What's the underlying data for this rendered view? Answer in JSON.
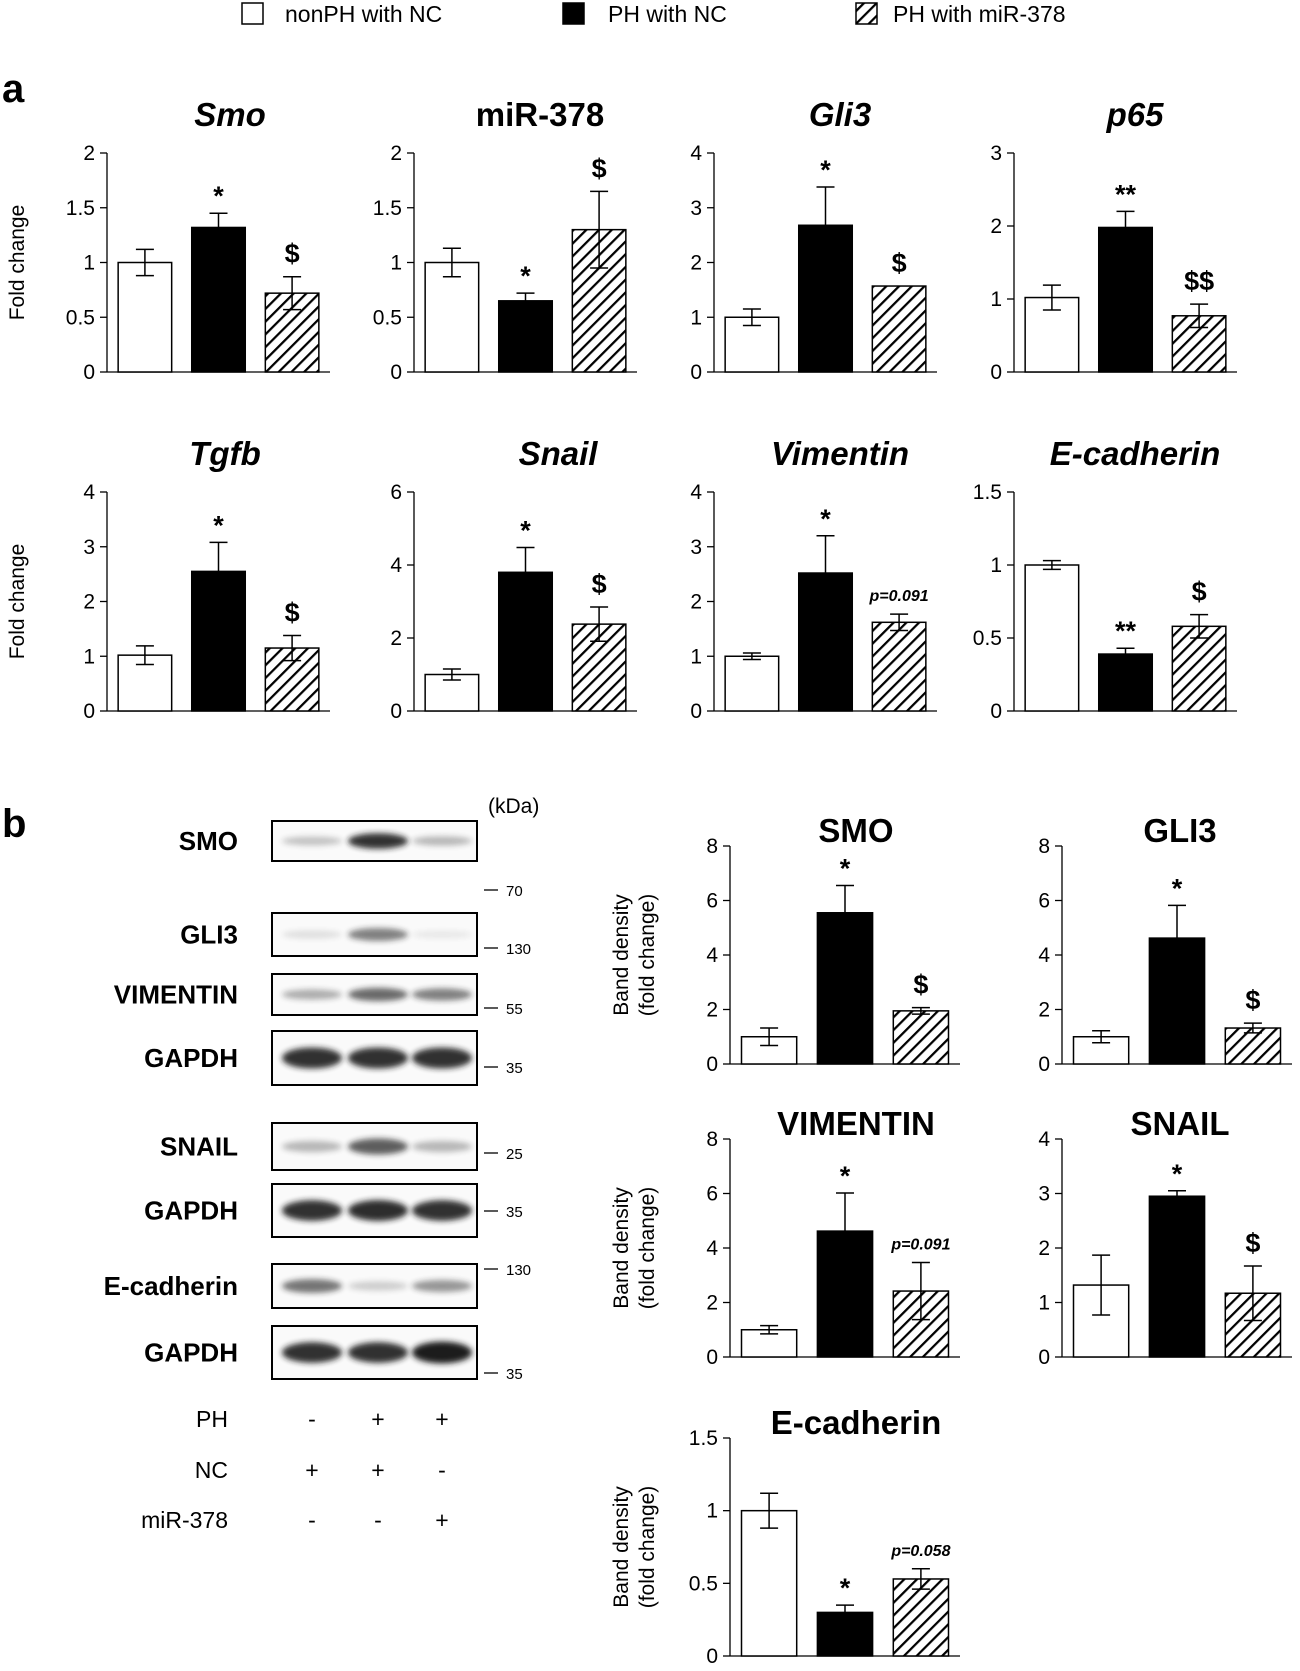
{
  "legend": {
    "items": [
      {
        "label": "nonPH with NC",
        "pattern": "white"
      },
      {
        "label": "PH with NC",
        "pattern": "black"
      },
      {
        "label": "PH with miR-378",
        "pattern": "hatch"
      }
    ]
  },
  "panels": {
    "a": "a",
    "b": "b"
  },
  "colors": {
    "black": "#000000",
    "white": "#ffffff",
    "band": "#1e1e1e"
  },
  "chart_data": [
    {
      "type": "bar",
      "panel": "a",
      "title": "Smo",
      "italic": true,
      "ylabel": "Fold change",
      "ylim": [
        0,
        2
      ],
      "yticks": [
        "0",
        "0.5",
        "1",
        "1.5",
        "2"
      ],
      "categories": [
        "nonPH with NC",
        "PH with NC",
        "PH with miR-378"
      ],
      "values": [
        1.0,
        1.32,
        0.72
      ],
      "errors": [
        0.12,
        0.13,
        0.15
      ],
      "annotations": [
        "",
        "*",
        "$"
      ]
    },
    {
      "type": "bar",
      "panel": "a",
      "title": "miR-378",
      "italic": false,
      "ylabel": "",
      "ylim": [
        0,
        2
      ],
      "yticks": [
        "0",
        "0.5",
        "1",
        "1.5",
        "2"
      ],
      "categories": [
        "nonPH with NC",
        "PH with NC",
        "PH with miR-378"
      ],
      "values": [
        1.0,
        0.65,
        1.3
      ],
      "errors": [
        0.13,
        0.07,
        0.35
      ],
      "annotations": [
        "",
        "*",
        "$"
      ]
    },
    {
      "type": "bar",
      "panel": "a",
      "title": "Gli3",
      "italic": true,
      "ylabel": "",
      "ylim": [
        0,
        4
      ],
      "yticks": [
        "0",
        "1",
        "2",
        "3",
        "4"
      ],
      "categories": [
        "nonPH with NC",
        "PH with NC",
        "PH with miR-378"
      ],
      "values": [
        1.0,
        2.68,
        1.57
      ],
      "errors": [
        0.15,
        0.7,
        0.0
      ],
      "annotations": [
        "",
        "*",
        "$"
      ]
    },
    {
      "type": "bar",
      "panel": "a",
      "title": "p65",
      "italic": true,
      "ylabel": "",
      "ylim": [
        0,
        3
      ],
      "yticks": [
        "0",
        "1",
        "2",
        "3"
      ],
      "categories": [
        "nonPH with NC",
        "PH with NC",
        "PH with miR-378"
      ],
      "values": [
        1.02,
        1.98,
        0.77
      ],
      "errors": [
        0.17,
        0.22,
        0.16
      ],
      "annotations": [
        "",
        "**",
        "$$"
      ]
    },
    {
      "type": "bar",
      "panel": "a",
      "title": "Tgfb",
      "italic": true,
      "ylabel": "Fold change",
      "ylim": [
        0,
        4
      ],
      "yticks": [
        "0",
        "1",
        "2",
        "3",
        "4"
      ],
      "categories": [
        "nonPH with NC",
        "PH with NC",
        "PH with miR-378"
      ],
      "values": [
        1.02,
        2.55,
        1.15
      ],
      "errors": [
        0.17,
        0.53,
        0.23
      ],
      "annotations": [
        "",
        "*",
        "$"
      ]
    },
    {
      "type": "bar",
      "panel": "a",
      "title": "Snail",
      "italic": true,
      "ylabel": "",
      "ylim": [
        0,
        6
      ],
      "yticks": [
        "0",
        "2",
        "4",
        "6"
      ],
      "categories": [
        "nonPH with NC",
        "PH with NC",
        "PH with miR-378"
      ],
      "values": [
        1.0,
        3.8,
        2.38
      ],
      "errors": [
        0.15,
        0.68,
        0.47
      ],
      "annotations": [
        "",
        "*",
        "$"
      ]
    },
    {
      "type": "bar",
      "panel": "a",
      "title": "Vimentin",
      "italic": true,
      "ylabel": "",
      "ylim": [
        0,
        4
      ],
      "yticks": [
        "0",
        "1",
        "2",
        "3",
        "4"
      ],
      "categories": [
        "nonPH with NC",
        "PH with NC",
        "PH with miR-378"
      ],
      "values": [
        1.0,
        2.52,
        1.62
      ],
      "errors": [
        0.06,
        0.68,
        0.15
      ],
      "annotations": [
        "",
        "*",
        "p=0.091"
      ]
    },
    {
      "type": "bar",
      "panel": "a",
      "title": "E-cadherin",
      "italic": true,
      "ylabel": "",
      "ylim": [
        0,
        1.5
      ],
      "yticks": [
        "0",
        "0.5",
        "1",
        "1.5"
      ],
      "categories": [
        "nonPH with NC",
        "PH with NC",
        "PH with miR-378"
      ],
      "values": [
        1.0,
        0.39,
        0.58
      ],
      "errors": [
        0.03,
        0.04,
        0.08
      ],
      "annotations": [
        "",
        "**",
        "$"
      ]
    },
    {
      "type": "bar",
      "panel": "b",
      "title": "SMO",
      "italic": false,
      "ylabel": "Band density (fold change)",
      "ylim": [
        0,
        8
      ],
      "yticks": [
        "0",
        "2",
        "4",
        "6",
        "8"
      ],
      "categories": [
        "nonPH with NC",
        "PH with NC",
        "PH with miR-378"
      ],
      "values": [
        1.0,
        5.55,
        1.95
      ],
      "errors": [
        0.32,
        1.0,
        0.12
      ],
      "annotations": [
        "",
        "*",
        "$"
      ]
    },
    {
      "type": "bar",
      "panel": "b",
      "title": "GLI3",
      "italic": false,
      "ylabel": "",
      "ylim": [
        0,
        8
      ],
      "yticks": [
        "0",
        "2",
        "4",
        "6",
        "8"
      ],
      "categories": [
        "nonPH with NC",
        "PH with NC",
        "PH with miR-378"
      ],
      "values": [
        1.0,
        4.62,
        1.32
      ],
      "errors": [
        0.22,
        1.2,
        0.18
      ],
      "annotations": [
        "",
        "*",
        "$"
      ]
    },
    {
      "type": "bar",
      "panel": "b",
      "title": "VIMENTIN",
      "italic": false,
      "ylabel": "Band density (fold change)",
      "ylim": [
        0,
        8
      ],
      "yticks": [
        "0",
        "2",
        "4",
        "6",
        "8"
      ],
      "categories": [
        "nonPH with NC",
        "PH with NC",
        "PH with miR-378"
      ],
      "values": [
        1.0,
        4.62,
        2.42
      ],
      "errors": [
        0.15,
        1.4,
        1.05
      ],
      "annotations": [
        "",
        "*",
        "p=0.091"
      ]
    },
    {
      "type": "bar",
      "panel": "b",
      "title": "SNAIL",
      "italic": false,
      "ylabel": "",
      "ylim": [
        0,
        4
      ],
      "yticks": [
        "0",
        "1",
        "2",
        "3",
        "4"
      ],
      "categories": [
        "nonPH with NC",
        "PH with NC",
        "PH with miR-378"
      ],
      "values": [
        1.32,
        2.95,
        1.17
      ],
      "errors": [
        0.55,
        0.1,
        0.5
      ],
      "annotations": [
        "",
        "*",
        "$"
      ]
    },
    {
      "type": "bar",
      "panel": "b",
      "title": "E-cadherin",
      "italic": false,
      "ylabel": "Band density (fold change)",
      "ylim": [
        0,
        1.5
      ],
      "yticks": [
        "0",
        "0.5",
        "1",
        "1.5"
      ],
      "categories": [
        "nonPH with NC",
        "PH with NC",
        "PH with miR-378"
      ],
      "values": [
        1.0,
        0.3,
        0.53
      ],
      "errors": [
        0.12,
        0.05,
        0.07
      ],
      "annotations": [
        "",
        "*",
        "p=0.058"
      ]
    }
  ],
  "blot": {
    "kda_header": "(kDa)",
    "groups": [
      {
        "label": "SMO",
        "bold": true,
        "markers": [
          "70"
        ],
        "intensities": [
          0.25,
          0.9,
          0.3
        ]
      },
      {
        "label": "GLI3",
        "bold": true,
        "markers": [
          "130"
        ],
        "intensities": [
          0.12,
          0.55,
          0.08
        ]
      },
      {
        "label": "VIMENTIN",
        "bold": true,
        "markers": [
          "55"
        ],
        "intensities": [
          0.35,
          0.65,
          0.55
        ]
      },
      {
        "label": "GAPDH",
        "bold": true,
        "markers": [
          "35"
        ],
        "intensities": [
          0.9,
          0.9,
          0.9
        ]
      },
      {
        "label": "SNAIL",
        "bold": true,
        "markers": [
          "25"
        ],
        "intensities": [
          0.3,
          0.7,
          0.3
        ]
      },
      {
        "label": "GAPDH",
        "bold": true,
        "markers": [
          "35"
        ],
        "intensities": [
          0.9,
          0.92,
          0.9
        ]
      },
      {
        "label": "E-cadherin",
        "bold": true,
        "markers": [
          "130"
        ],
        "intensities": [
          0.6,
          0.2,
          0.45
        ]
      },
      {
        "label": "GAPDH",
        "bold": true,
        "markers": [
          "35"
        ],
        "intensities": [
          0.9,
          0.9,
          1.0
        ]
      }
    ],
    "conditions": [
      {
        "label": "PH",
        "signs": [
          "-",
          "+",
          "+"
        ]
      },
      {
        "label": "NC",
        "signs": [
          "+",
          "+",
          "-"
        ]
      },
      {
        "label": "miR-378",
        "signs": [
          "-",
          "-",
          "+"
        ]
      }
    ]
  }
}
